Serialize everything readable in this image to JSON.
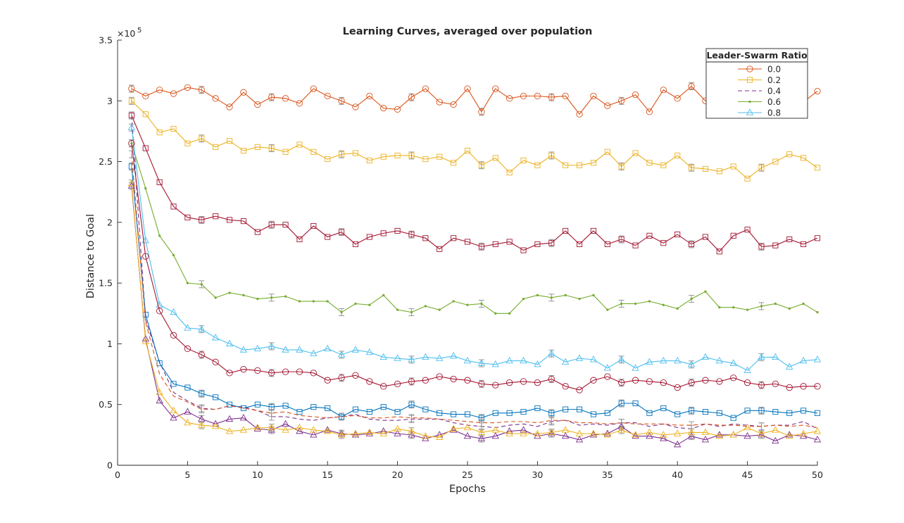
{
  "chart_data": {
    "type": "line",
    "title": "Learning Curves, averaged over population",
    "xlabel": "Epochs",
    "ylabel": "Distance to Goal",
    "y_exponent_label": "×10",
    "y_exponent_power": "5",
    "xlim": [
      0,
      50
    ],
    "ylim": [
      0,
      350000
    ],
    "x_ticks": [
      "0",
      "5",
      "10",
      "15",
      "20",
      "25",
      "30",
      "35",
      "40",
      "45",
      "50"
    ],
    "x_tick_values": [
      0,
      5,
      10,
      15,
      20,
      25,
      30,
      35,
      40,
      45,
      50
    ],
    "y_ticks": [
      "0",
      "0.5",
      "1",
      "1.5",
      "2",
      "2.5",
      "3",
      "3.5"
    ],
    "y_tick_values": [
      0,
      50000,
      100000,
      150000,
      200000,
      250000,
      300000,
      350000
    ],
    "grid": false,
    "legend": {
      "title": "Leader-Swarm Ratio",
      "placement": "top-right"
    },
    "x": [
      1,
      2,
      3,
      4,
      5,
      6,
      7,
      8,
      9,
      10,
      11,
      12,
      13,
      14,
      15,
      16,
      17,
      18,
      19,
      20,
      21,
      22,
      23,
      24,
      25,
      26,
      27,
      28,
      29,
      30,
      31,
      32,
      33,
      34,
      35,
      36,
      37,
      38,
      39,
      40,
      41,
      42,
      43,
      44,
      45,
      46,
      47,
      48,
      49,
      50
    ],
    "series": [
      {
        "name": "0.0",
        "color": "#D95319",
        "style": "solid",
        "marker": "circle",
        "values": [
          310000,
          304000,
          309000,
          306000,
          311000,
          309000,
          302000,
          295000,
          307000,
          297000,
          303000,
          302000,
          298000,
          310000,
          304000,
          300000,
          295000,
          304000,
          294000,
          293000,
          303000,
          310000,
          299000,
          297000,
          310000,
          291000,
          310000,
          302000,
          304000,
          304000,
          303000,
          304000,
          289000,
          304000,
          296000,
          300000,
          305000,
          291000,
          309000,
          302000,
          312000,
          300000,
          300000,
          302000,
          295000,
          302000,
          299000,
          295000,
          299000,
          308000
        ],
        "error_bar_epochs": [
          1,
          6,
          11,
          16,
          21,
          26,
          31,
          36,
          41,
          46
        ]
      },
      {
        "name": "0.2",
        "color": "#EDB120",
        "style": "solid",
        "marker": "square",
        "values": [
          300000,
          289000,
          274000,
          277000,
          265000,
          269000,
          262000,
          267000,
          259000,
          262000,
          261000,
          258000,
          264000,
          258000,
          252000,
          256000,
          257000,
          251000,
          254000,
          255000,
          255000,
          252000,
          254000,
          249000,
          259000,
          247000,
          253000,
          241000,
          251000,
          247000,
          255000,
          247000,
          247000,
          249000,
          258000,
          246000,
          257000,
          249000,
          247000,
          255000,
          245000,
          244000,
          242000,
          246000,
          236000,
          245000,
          250000,
          256000,
          253000,
          245000
        ],
        "error_bar_epochs": [
          1,
          6,
          11,
          16,
          21,
          26,
          31,
          36,
          41,
          46
        ]
      },
      {
        "name": "0.4",
        "color": "#7E2F8E",
        "style": "dash",
        "marker": "none",
        "values": [
          288000,
          120000,
          85000,
          60000,
          53000,
          47000,
          46000,
          49000,
          48000,
          45000,
          40000,
          40000,
          38000,
          37000,
          39000,
          40000,
          42000,
          38000,
          37000,
          37000,
          38000,
          38000,
          38000,
          35000,
          33000,
          32000,
          31000,
          33000,
          34000,
          32000,
          36000,
          37000,
          33000,
          34000,
          33000,
          35000,
          35000,
          32000,
          34000,
          31000,
          30000,
          34000,
          32000,
          34000,
          33000,
          32000,
          33000,
          33000,
          36000,
          30000
        ],
        "error_bar_epochs": [
          1,
          6,
          11,
          16,
          21,
          26,
          31,
          36,
          41,
          46
        ]
      },
      {
        "name": "0.6",
        "color": "#77AC30",
        "style": "solid",
        "marker": "dot",
        "values": [
          265000,
          228000,
          189000,
          173000,
          150000,
          149000,
          138000,
          142000,
          140000,
          137000,
          138000,
          139000,
          135000,
          135000,
          135000,
          126000,
          133000,
          132000,
          140000,
          128000,
          126000,
          131000,
          128000,
          135000,
          132000,
          133000,
          125000,
          125000,
          137000,
          140000,
          138000,
          140000,
          137000,
          140000,
          128000,
          133000,
          133000,
          135000,
          132000,
          129000,
          137000,
          143000,
          130000,
          130000,
          128000,
          131000,
          133000,
          129000,
          133000,
          126000
        ],
        "error_bar_epochs": [
          1,
          6,
          11,
          16,
          21,
          26,
          31,
          36,
          41,
          46
        ]
      },
      {
        "name": "0.8",
        "color": "#4DBEEE",
        "style": "solid",
        "marker": "triangle",
        "values": [
          278000,
          185000,
          132000,
          126000,
          113000,
          112000,
          105000,
          100000,
          95000,
          96000,
          98000,
          95000,
          95000,
          92000,
          96000,
          91000,
          95000,
          93000,
          89000,
          88000,
          87000,
          89000,
          88000,
          90000,
          86000,
          84000,
          83000,
          86000,
          86000,
          83000,
          92000,
          85000,
          88000,
          87000,
          80000,
          87000,
          80000,
          85000,
          86000,
          86000,
          83000,
          89000,
          86000,
          84000,
          78000,
          89000,
          89000,
          81000,
          86000,
          87000
        ],
        "error_bar_epochs": [
          1,
          6,
          11,
          16,
          21,
          26,
          31,
          36,
          41,
          46
        ]
      },
      {
        "name": "",
        "color": "#A2142F",
        "style": "solid",
        "marker": "square",
        "values": [
          288000,
          261000,
          233000,
          213000,
          204000,
          202000,
          205000,
          202000,
          201000,
          192000,
          198000,
          198000,
          186000,
          197000,
          188000,
          192000,
          182000,
          188000,
          191000,
          193000,
          190000,
          187000,
          178000,
          187000,
          184000,
          180000,
          182000,
          184000,
          177000,
          182000,
          183000,
          193000,
          182000,
          193000,
          182000,
          186000,
          181000,
          189000,
          183000,
          190000,
          182000,
          188000,
          176000,
          189000,
          194000,
          180000,
          181000,
          186000,
          182000,
          187000
        ],
        "error_bar_epochs": [
          1,
          6,
          11,
          16,
          21,
          26,
          31,
          36,
          41,
          46
        ]
      },
      {
        "name": "",
        "color": "#A2142F",
        "style": "solid",
        "marker": "circle",
        "values": [
          265000,
          172000,
          127000,
          107000,
          96000,
          91000,
          85000,
          76000,
          79000,
          78000,
          76000,
          77000,
          77000,
          76000,
          70000,
          72000,
          74000,
          69000,
          65000,
          67000,
          69000,
          70000,
          73000,
          71000,
          70000,
          67000,
          66000,
          68000,
          69000,
          68000,
          71000,
          65000,
          62000,
          70000,
          73000,
          68000,
          70000,
          69000,
          68000,
          64000,
          68000,
          70000,
          69000,
          72000,
          68000,
          66000,
          67000,
          64000,
          65000,
          65000
        ],
        "error_bar_epochs": [
          1,
          6,
          11,
          16,
          21,
          26,
          31,
          36,
          41,
          46
        ]
      },
      {
        "name": "",
        "color": "#0072BD",
        "style": "solid",
        "marker": "square",
        "values": [
          246000,
          124000,
          84000,
          67000,
          64000,
          59000,
          56000,
          50000,
          47000,
          50000,
          48000,
          49000,
          44000,
          48000,
          47000,
          40000,
          46000,
          44000,
          48000,
          44000,
          50000,
          46000,
          43000,
          42000,
          42000,
          39000,
          43000,
          43000,
          44000,
          47000,
          43000,
          46000,
          46000,
          42000,
          43000,
          51000,
          51000,
          43000,
          47000,
          42000,
          45000,
          44000,
          43000,
          39000,
          45000,
          45000,
          44000,
          43000,
          45000,
          43000
        ],
        "error_bar_epochs": [
          1,
          6,
          11,
          16,
          21,
          26,
          31,
          36,
          41,
          46
        ]
      },
      {
        "name": "",
        "color": "#7E2F8E",
        "style": "solid",
        "marker": "triangle",
        "values": [
          230000,
          104000,
          53000,
          39000,
          44000,
          38000,
          34000,
          38000,
          39000,
          30000,
          29000,
          34000,
          28000,
          25000,
          29000,
          26000,
          25000,
          26000,
          28000,
          26000,
          25000,
          22000,
          25000,
          29000,
          24000,
          22000,
          24000,
          28000,
          29000,
          24000,
          26000,
          24000,
          21000,
          25000,
          26000,
          32000,
          24000,
          24000,
          22000,
          17000,
          24000,
          21000,
          25000,
          25000,
          24000,
          25000,
          20000,
          25000,
          24000,
          21000
        ],
        "error_bar_epochs": [
          1,
          6,
          11,
          16,
          21,
          26,
          31,
          36,
          41,
          46
        ]
      },
      {
        "name": "",
        "color": "#EDB120",
        "style": "solid",
        "marker": "triangle",
        "values": [
          232000,
          102000,
          60000,
          45000,
          35000,
          33000,
          32000,
          28000,
          29000,
          31000,
          31000,
          29000,
          31000,
          29000,
          28000,
          25000,
          26000,
          27000,
          26000,
          30000,
          28000,
          24000,
          23000,
          30000,
          31000,
          27000,
          29000,
          26000,
          26000,
          26000,
          27000,
          29000,
          26000,
          26000,
          25000,
          29000,
          25000,
          27000,
          25000,
          26000,
          27000,
          27000,
          24000,
          25000,
          31000,
          26000,
          29000,
          24000,
          26000,
          28000
        ],
        "error_bar_epochs": [
          1,
          6,
          11,
          16,
          21,
          26,
          31,
          36,
          41,
          46
        ]
      },
      {
        "name": "",
        "color": "#D95319",
        "style": "dash",
        "marker": "none",
        "values": [
          256000,
          118000,
          75000,
          57000,
          52000,
          46000,
          46000,
          49000,
          47000,
          45000,
          43000,
          44000,
          41000,
          40000,
          39000,
          40000,
          41000,
          39000,
          39000,
          40000,
          39000,
          39000,
          38000,
          37000,
          36000,
          35000,
          35000,
          36000,
          36000,
          35000,
          37000,
          37000,
          35000,
          35000,
          34000,
          35000,
          34000,
          34000,
          34000,
          33000,
          33000,
          34000,
          33000,
          33000,
          32000,
          32000,
          33000,
          32000,
          33000,
          31000
        ],
        "error_bar_epochs": [
          1,
          6,
          11,
          16,
          21,
          26,
          31,
          36,
          41,
          46
        ]
      }
    ]
  }
}
